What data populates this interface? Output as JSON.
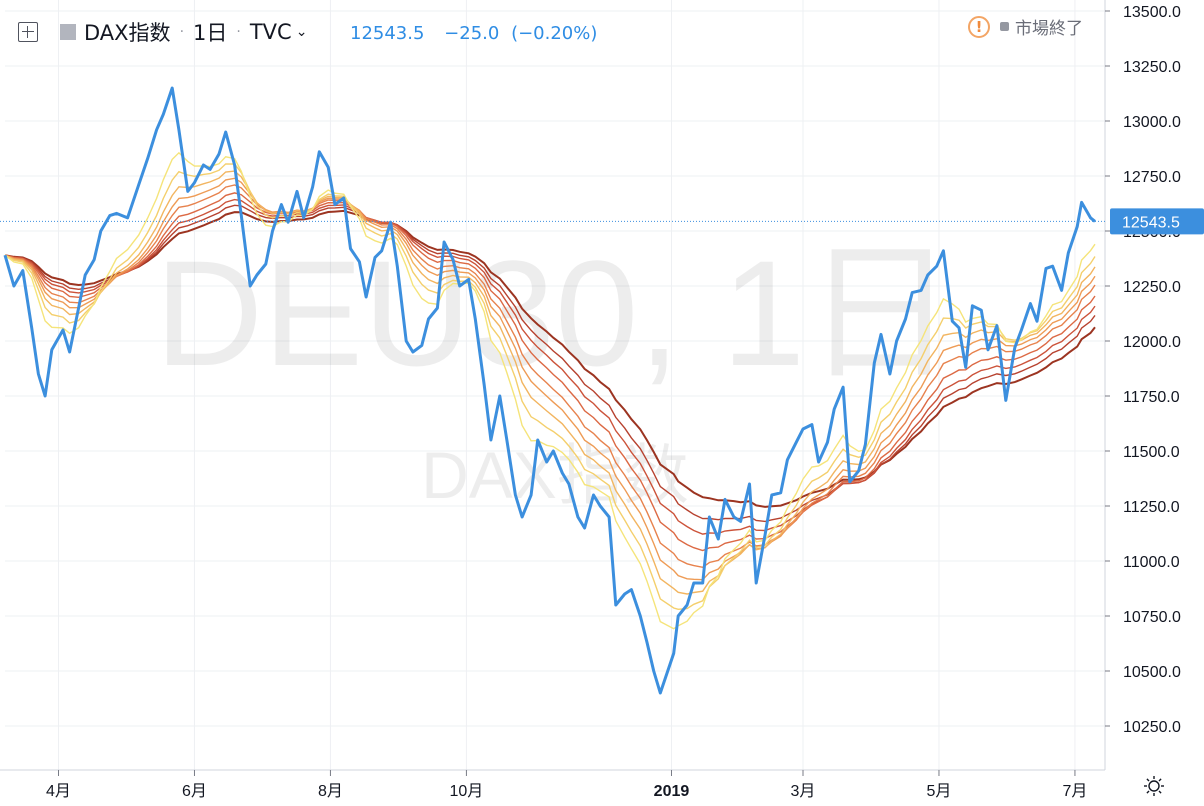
{
  "header": {
    "symbol": "DAX指数",
    "interval": "1日",
    "exchange": "TVC",
    "last": "12543.5",
    "change": "−25.0",
    "change_pct": "(−0.20%)",
    "market_status": "市場終了"
  },
  "watermark": {
    "line1": "DEU30, 1日",
    "line2": "DAX指数"
  },
  "price_label": "12543.5",
  "colors": {
    "price_line": "#3c8fde",
    "ribbon": [
      "#f5e47a",
      "#f4cf6c",
      "#f2b560",
      "#ee9b55",
      "#e7824d",
      "#dc6944",
      "#cc533a",
      "#b7422f",
      "#9c3421"
    ],
    "grid": "#eef0f3",
    "axis_text": "#131722",
    "last_price_bg": "#3c8fde"
  },
  "chart_data": {
    "type": "line",
    "title": "DAX指数",
    "ylim": [
      10050,
      13550
    ],
    "y_ticks": [
      10250,
      10500,
      10750,
      11000,
      11250,
      11500,
      11750,
      12000,
      12250,
      12500,
      12750,
      13000,
      13250,
      13500
    ],
    "x_domain": [
      "2018-03-08",
      "2019-07-10"
    ],
    "x_ticks": [
      {
        "label": "4月",
        "date": "2018-04-01"
      },
      {
        "label": "6月",
        "date": "2018-06-01"
      },
      {
        "label": "8月",
        "date": "2018-08-01"
      },
      {
        "label": "10月",
        "date": "2018-10-01"
      },
      {
        "label": "2019",
        "date": "2019-01-01",
        "bold": true
      },
      {
        "label": "3月",
        "date": "2019-03-01"
      },
      {
        "label": "5月",
        "date": "2019-05-01"
      },
      {
        "label": "7月",
        "date": "2019-07-01"
      }
    ],
    "series": [
      {
        "points": [
          [
            "2018-03-08",
            12390
          ],
          [
            "2018-03-12",
            12250
          ],
          [
            "2018-03-16",
            12320
          ],
          [
            "2018-03-20",
            12060
          ],
          [
            "2018-03-23",
            11850
          ],
          [
            "2018-03-26",
            11750
          ],
          [
            "2018-03-29",
            11960
          ],
          [
            "2018-04-03",
            12050
          ],
          [
            "2018-04-06",
            11950
          ],
          [
            "2018-04-10",
            12150
          ],
          [
            "2018-04-13",
            12300
          ],
          [
            "2018-04-17",
            12370
          ],
          [
            "2018-04-20",
            12500
          ],
          [
            "2018-04-24",
            12570
          ],
          [
            "2018-04-27",
            12580
          ],
          [
            "2018-05-02",
            12560
          ],
          [
            "2018-05-07",
            12710
          ],
          [
            "2018-05-11",
            12830
          ],
          [
            "2018-05-15",
            12960
          ],
          [
            "2018-05-18",
            13030
          ],
          [
            "2018-05-22",
            13150
          ],
          [
            "2018-05-25",
            12960
          ],
          [
            "2018-05-29",
            12680
          ],
          [
            "2018-06-01",
            12720
          ],
          [
            "2018-06-05",
            12800
          ],
          [
            "2018-06-08",
            12780
          ],
          [
            "2018-06-12",
            12850
          ],
          [
            "2018-06-15",
            12950
          ],
          [
            "2018-06-19",
            12800
          ],
          [
            "2018-06-22",
            12570
          ],
          [
            "2018-06-26",
            12250
          ],
          [
            "2018-06-29",
            12300
          ],
          [
            "2018-07-03",
            12350
          ],
          [
            "2018-07-06",
            12500
          ],
          [
            "2018-07-10",
            12620
          ],
          [
            "2018-07-13",
            12540
          ],
          [
            "2018-07-17",
            12680
          ],
          [
            "2018-07-20",
            12560
          ],
          [
            "2018-07-24",
            12700
          ],
          [
            "2018-07-27",
            12860
          ],
          [
            "2018-07-31",
            12790
          ],
          [
            "2018-08-03",
            12620
          ],
          [
            "2018-08-07",
            12650
          ],
          [
            "2018-08-10",
            12420
          ],
          [
            "2018-08-14",
            12360
          ],
          [
            "2018-08-17",
            12200
          ],
          [
            "2018-08-21",
            12380
          ],
          [
            "2018-08-24",
            12410
          ],
          [
            "2018-08-28",
            12540
          ],
          [
            "2018-08-31",
            12340
          ],
          [
            "2018-09-04",
            12000
          ],
          [
            "2018-09-07",
            11950
          ],
          [
            "2018-09-11",
            11980
          ],
          [
            "2018-09-14",
            12100
          ],
          [
            "2018-09-18",
            12150
          ],
          [
            "2018-09-21",
            12450
          ],
          [
            "2018-09-25",
            12370
          ],
          [
            "2018-09-28",
            12250
          ],
          [
            "2018-10-02",
            12280
          ],
          [
            "2018-10-05",
            12100
          ],
          [
            "2018-10-09",
            11800
          ],
          [
            "2018-10-12",
            11550
          ],
          [
            "2018-10-16",
            11750
          ],
          [
            "2018-10-19",
            11560
          ],
          [
            "2018-10-23",
            11300
          ],
          [
            "2018-10-26",
            11200
          ],
          [
            "2018-10-30",
            11300
          ],
          [
            "2018-11-02",
            11550
          ],
          [
            "2018-11-06",
            11450
          ],
          [
            "2018-11-09",
            11500
          ],
          [
            "2018-11-13",
            11400
          ],
          [
            "2018-11-16",
            11350
          ],
          [
            "2018-11-20",
            11200
          ],
          [
            "2018-11-23",
            11150
          ],
          [
            "2018-11-27",
            11300
          ],
          [
            "2018-11-30",
            11250
          ],
          [
            "2018-12-04",
            11200
          ],
          [
            "2018-12-07",
            10800
          ],
          [
            "2018-12-11",
            10850
          ],
          [
            "2018-12-14",
            10870
          ],
          [
            "2018-12-18",
            10750
          ],
          [
            "2018-12-21",
            10630
          ],
          [
            "2018-12-24",
            10500
          ],
          [
            "2018-12-27",
            10400
          ],
          [
            "2019-01-02",
            10580
          ],
          [
            "2019-01-04",
            10750
          ],
          [
            "2019-01-08",
            10800
          ],
          [
            "2019-01-11",
            10900
          ],
          [
            "2019-01-15",
            10900
          ],
          [
            "2019-01-18",
            11200
          ],
          [
            "2019-01-22",
            11100
          ],
          [
            "2019-01-25",
            11280
          ],
          [
            "2019-01-29",
            11200
          ],
          [
            "2019-02-01",
            11180
          ],
          [
            "2019-02-05",
            11350
          ],
          [
            "2019-02-08",
            10900
          ],
          [
            "2019-02-12",
            11120
          ],
          [
            "2019-02-15",
            11300
          ],
          [
            "2019-02-19",
            11310
          ],
          [
            "2019-02-22",
            11460
          ],
          [
            "2019-02-26",
            11540
          ],
          [
            "2019-03-01",
            11600
          ],
          [
            "2019-03-05",
            11620
          ],
          [
            "2019-03-08",
            11450
          ],
          [
            "2019-03-12",
            11540
          ],
          [
            "2019-03-15",
            11690
          ],
          [
            "2019-03-19",
            11790
          ],
          [
            "2019-03-22",
            11360
          ],
          [
            "2019-03-26",
            11410
          ],
          [
            "2019-03-29",
            11530
          ],
          [
            "2019-04-02",
            11900
          ],
          [
            "2019-04-05",
            12030
          ],
          [
            "2019-04-09",
            11850
          ],
          [
            "2019-04-12",
            12000
          ],
          [
            "2019-04-16",
            12100
          ],
          [
            "2019-04-19",
            12220
          ],
          [
            "2019-04-23",
            12230
          ],
          [
            "2019-04-26",
            12300
          ],
          [
            "2019-04-30",
            12340
          ],
          [
            "2019-05-03",
            12410
          ],
          [
            "2019-05-07",
            12090
          ],
          [
            "2019-05-10",
            12060
          ],
          [
            "2019-05-13",
            11880
          ],
          [
            "2019-05-16",
            12160
          ],
          [
            "2019-05-20",
            12140
          ],
          [
            "2019-05-23",
            11960
          ],
          [
            "2019-05-27",
            12070
          ],
          [
            "2019-05-31",
            11730
          ],
          [
            "2019-06-04",
            11970
          ],
          [
            "2019-06-07",
            12050
          ],
          [
            "2019-06-11",
            12170
          ],
          [
            "2019-06-14",
            12090
          ],
          [
            "2019-06-18",
            12330
          ],
          [
            "2019-06-21",
            12340
          ],
          [
            "2019-06-25",
            12230
          ],
          [
            "2019-06-28",
            12400
          ],
          [
            "2019-07-02",
            12520
          ],
          [
            "2019-07-04",
            12630
          ],
          [
            "2019-07-08",
            12560
          ],
          [
            "2019-07-10",
            12543.5
          ]
        ]
      }
    ],
    "ribbon_note_levels": 9
  }
}
